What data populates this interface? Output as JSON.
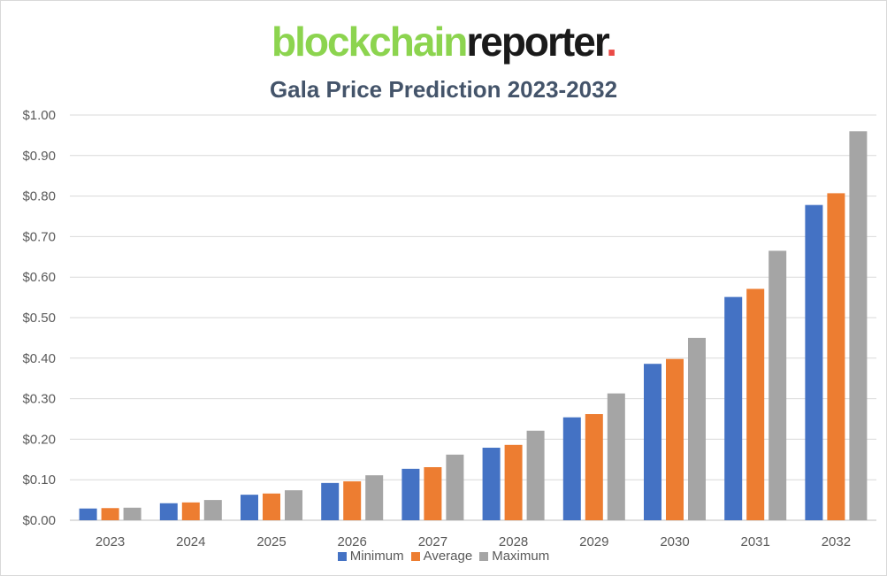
{
  "logo": {
    "part1": "blockchain",
    "part2": "reporter",
    "dot": "."
  },
  "chart_data": {
    "type": "bar",
    "title": "Gala Price Prediction 2023-2032",
    "categories": [
      "2023",
      "2024",
      "2025",
      "2026",
      "2027",
      "2028",
      "2029",
      "2030",
      "2031",
      "2032"
    ],
    "series": [
      {
        "name": "Minimum",
        "color": "#4472c4",
        "values": [
          0.029,
          0.042,
          0.063,
          0.092,
          0.127,
          0.179,
          0.254,
          0.386,
          0.551,
          0.778
        ]
      },
      {
        "name": "Average",
        "color": "#ed7d31",
        "values": [
          0.03,
          0.044,
          0.066,
          0.096,
          0.131,
          0.186,
          0.262,
          0.398,
          0.571,
          0.807
        ]
      },
      {
        "name": "Maximum",
        "color": "#a5a5a5",
        "values": [
          0.031,
          0.05,
          0.074,
          0.111,
          0.162,
          0.221,
          0.313,
          0.45,
          0.665,
          0.96
        ]
      }
    ],
    "ylim": [
      0,
      1.0
    ],
    "yticks": [
      "$0.00",
      "$0.10",
      "$0.20",
      "$0.30",
      "$0.40",
      "$0.50",
      "$0.60",
      "$0.70",
      "$0.80",
      "$0.90",
      "$1.00"
    ],
    "grid": true,
    "legend_position": "bottom"
  }
}
